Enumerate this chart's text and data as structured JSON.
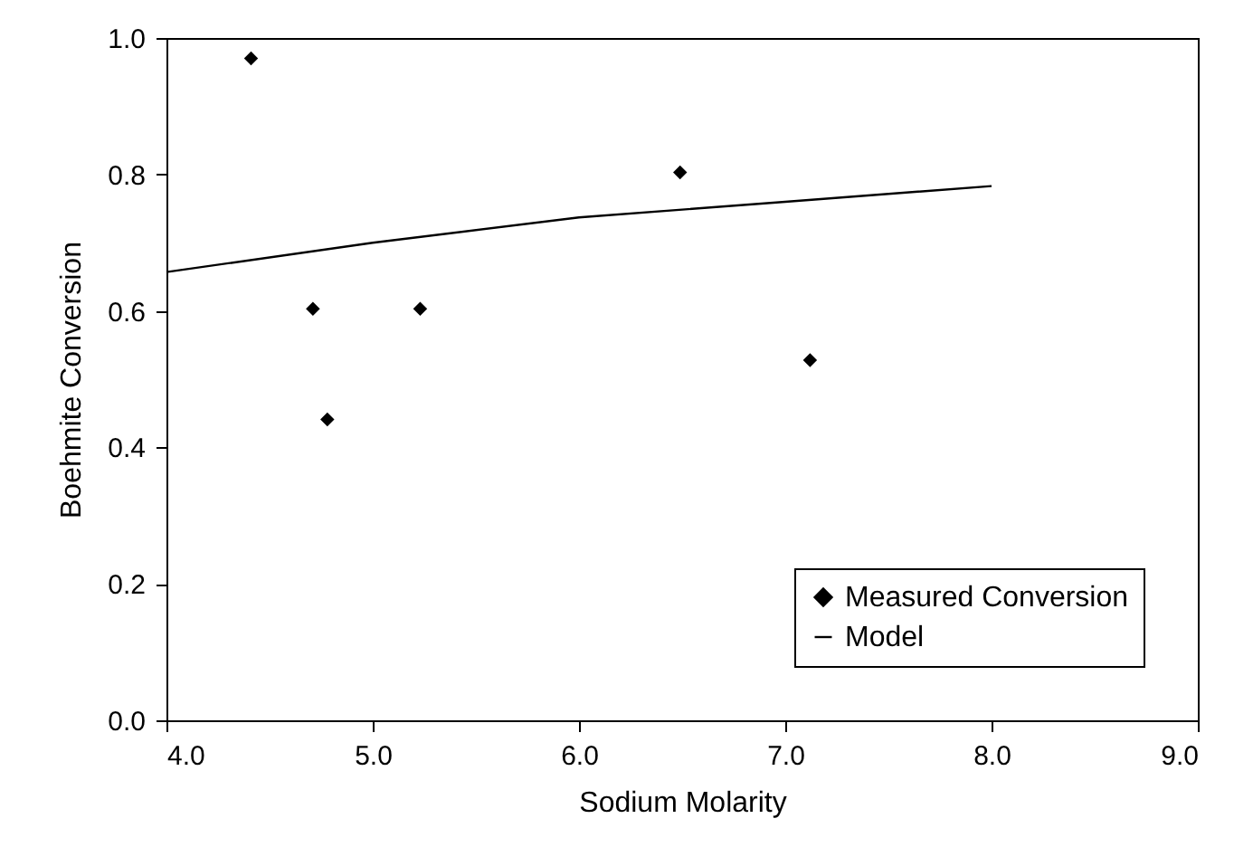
{
  "chart_data": {
    "type": "scatter",
    "xlabel": "Sodium Molarity",
    "ylabel": "Boehmite Conversion",
    "xlim": [
      4,
      9
    ],
    "ylim": [
      0,
      1
    ],
    "xticks": [
      {
        "value": 4,
        "label": "4.0"
      },
      {
        "value": 5,
        "label": "5.0"
      },
      {
        "value": 6,
        "label": "6.0"
      },
      {
        "value": 7,
        "label": "7.0"
      },
      {
        "value": 8,
        "label": "8.0"
      },
      {
        "value": 9,
        "label": "9.0"
      }
    ],
    "yticks": [
      {
        "value": 0,
        "label": "0.0"
      },
      0.2,
      0.4,
      0.6,
      0.8,
      {
        "value": 1,
        "label": "1.0"
      }
    ],
    "grid": false,
    "legend": "bottom right",
    "series": [
      {
        "name": "Measured Conversion",
        "marker": "diamond",
        "color": "#000000",
        "x": [
          4.41,
          4.71,
          4.78,
          5.23,
          6.49,
          7.12
        ],
        "values": [
          0.97,
          0.603,
          0.441,
          0.603,
          0.803,
          0.528
        ]
      },
      {
        "name": "Model",
        "type": "line",
        "marker": "none",
        "line_style": "solid",
        "color": "#000000",
        "x": [
          4,
          5,
          6,
          7,
          8
        ],
        "values": [
          0.657,
          0.7,
          0.737,
          0.76,
          0.783
        ]
      }
    ]
  }
}
